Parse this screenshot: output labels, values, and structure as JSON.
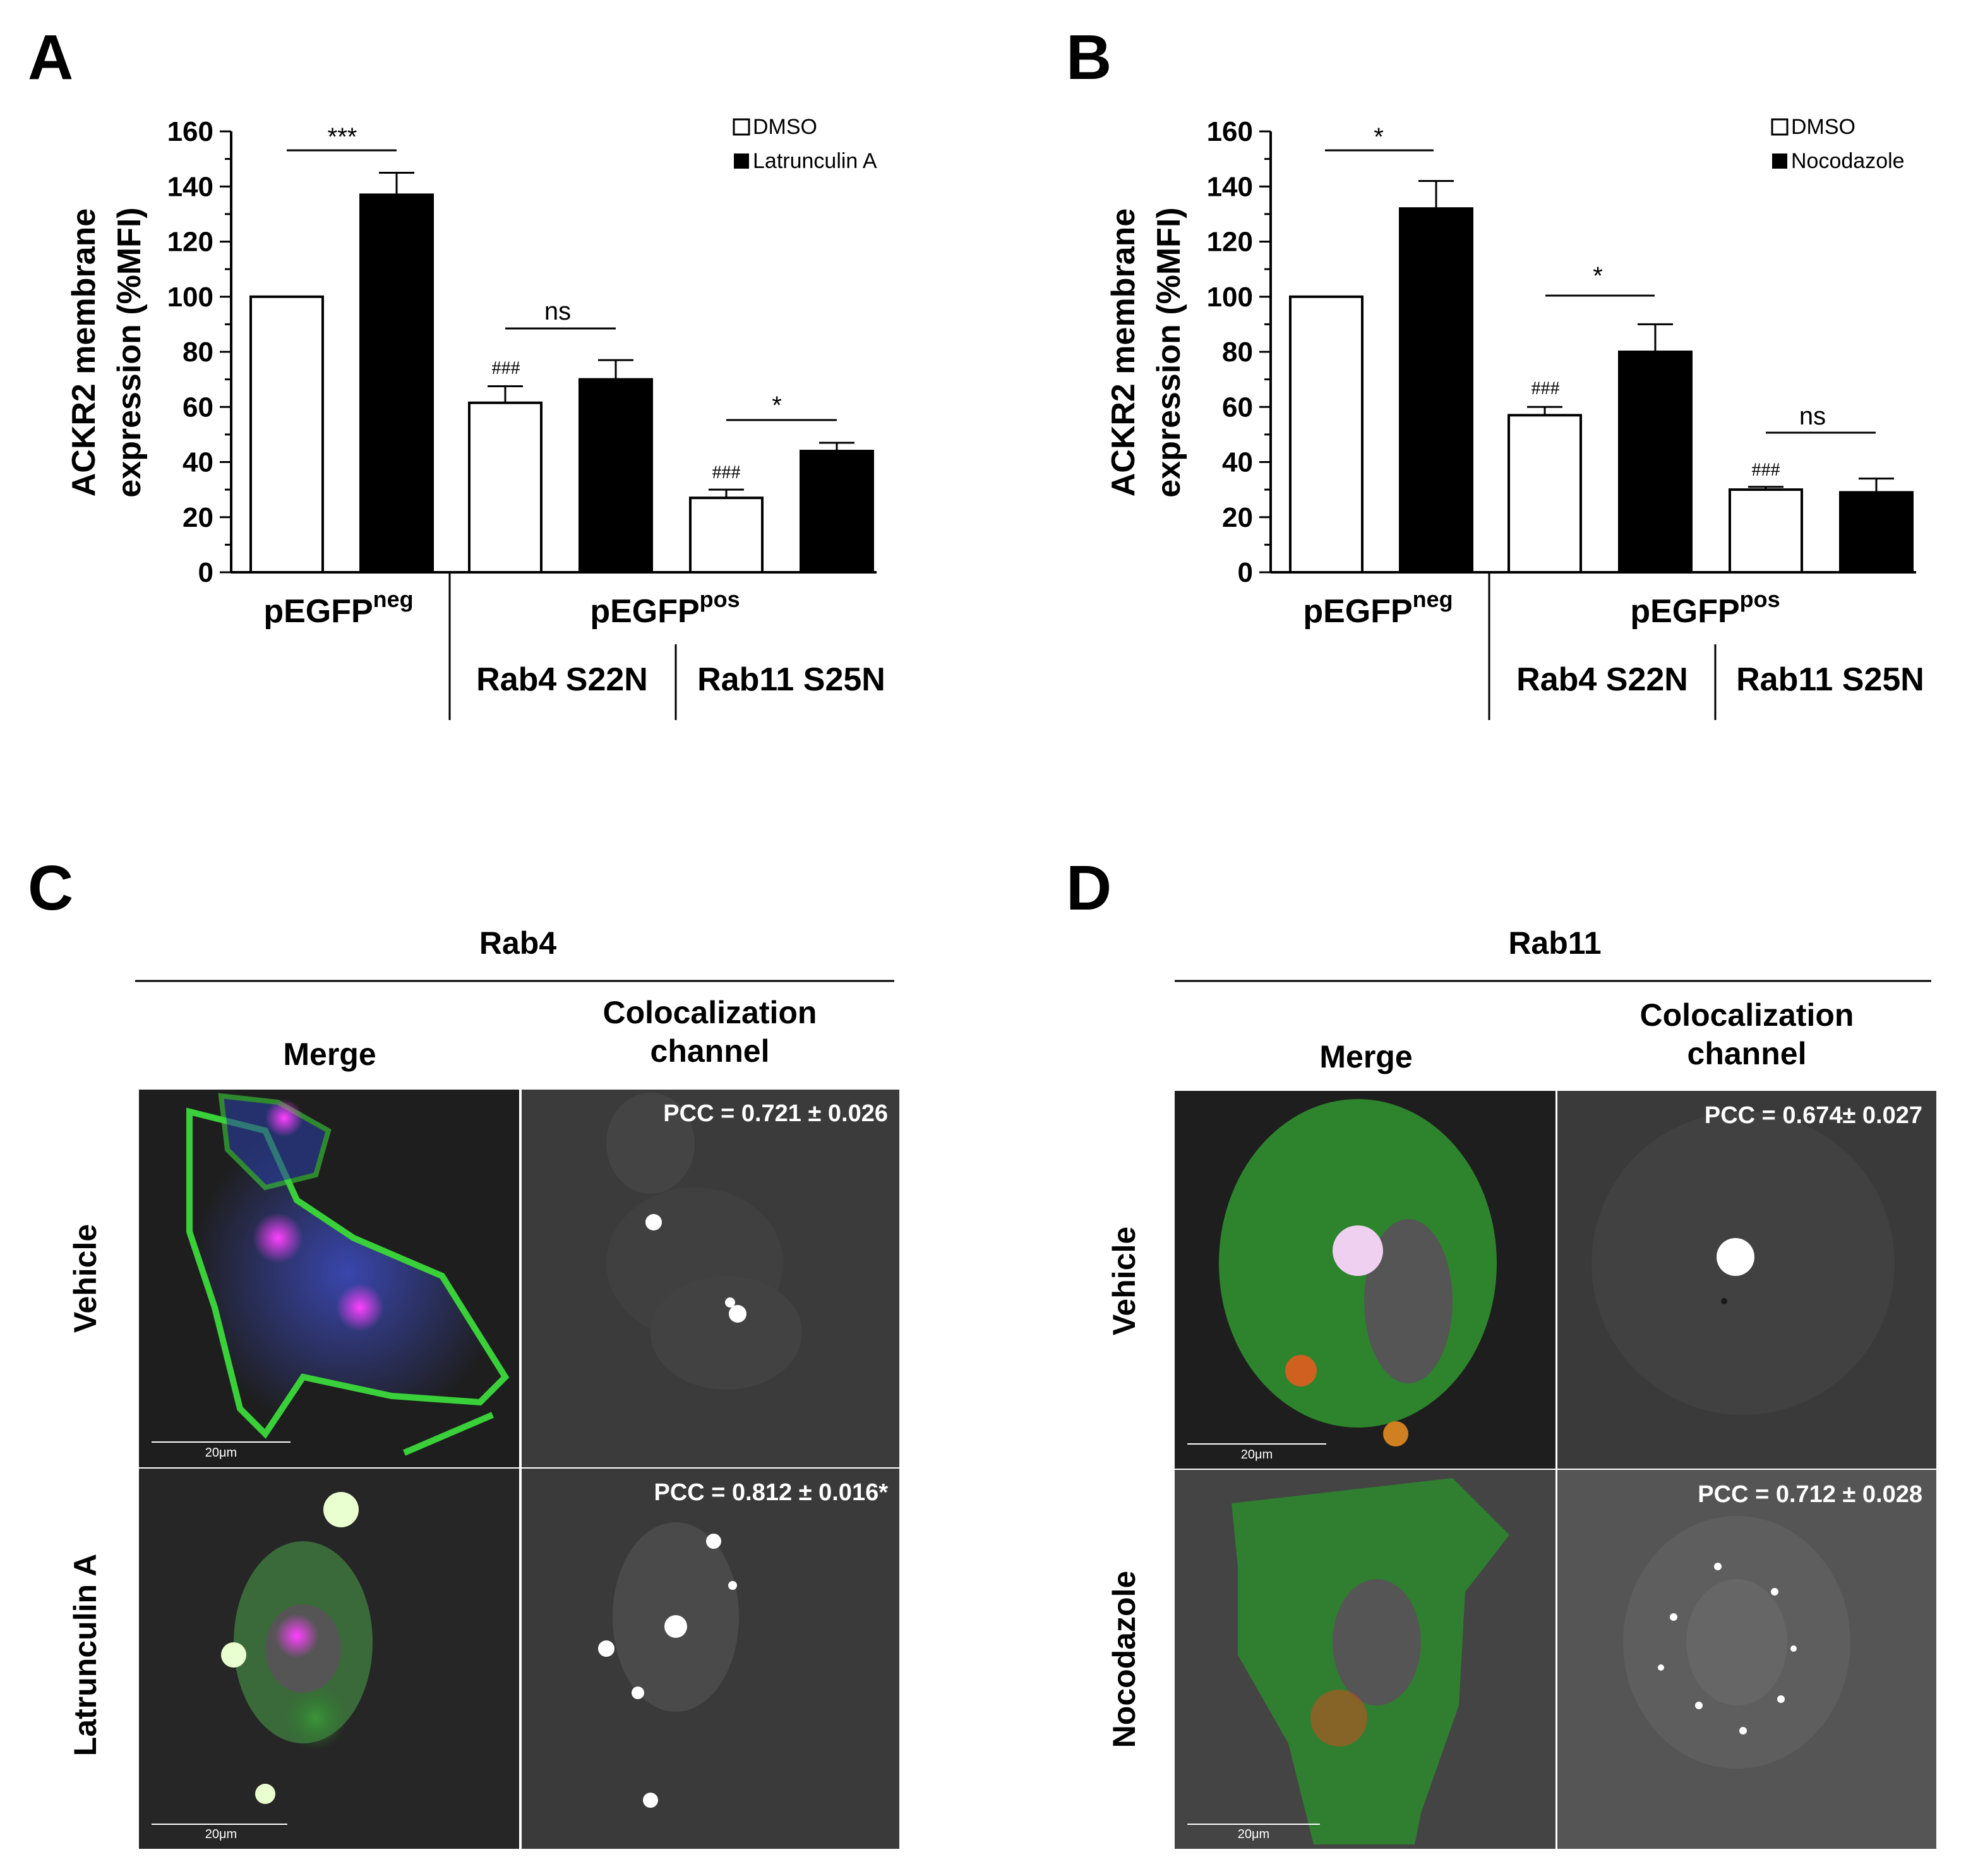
{
  "panels": {
    "A": "A",
    "B": "B",
    "C": "C",
    "D": "D"
  },
  "chart_data": [
    {
      "type": "bar",
      "panel": "A",
      "ylabel_line1": "ACKR2 membrane",
      "ylabel_line2": "expression (%MFI)",
      "ylim": [
        0,
        160
      ],
      "yticks": [
        "0",
        "20",
        "40",
        "60",
        "80",
        "100",
        "120",
        "140",
        "160"
      ],
      "legend": [
        "DMSO",
        "Latrunculin A"
      ],
      "legend_placement": "top-right",
      "series_colors": [
        "#ffffff",
        "#000000"
      ],
      "group_labels": {
        "neg_main": "pEGFP",
        "neg_sup": "neg",
        "pos_main": "pEGFP",
        "pos_sup": "pos",
        "sub1": "Rab4 S22N",
        "sub2": "Rab11 S25N"
      },
      "bars": [
        {
          "series": "DMSO",
          "value": 100,
          "error": 0
        },
        {
          "series": "Latrunculin A",
          "value": 137,
          "error": 8
        },
        {
          "series": "DMSO",
          "value": 61.5,
          "error": 6
        },
        {
          "series": "Latrunculin A",
          "value": 70,
          "error": 7
        },
        {
          "series": "DMSO",
          "value": 27,
          "error": 3
        },
        {
          "series": "Latrunculin A",
          "value": 44,
          "error": 3
        }
      ],
      "hash_labels": [
        "###",
        "###"
      ],
      "significance": [
        "***",
        "ns",
        "*"
      ]
    },
    {
      "type": "bar",
      "panel": "B",
      "ylabel_line1": "ACKR2 membrane",
      "ylabel_line2": "expression (%MFI)",
      "ylim": [
        0,
        160
      ],
      "yticks": [
        "0",
        "20",
        "40",
        "60",
        "80",
        "100",
        "120",
        "140",
        "160"
      ],
      "legend": [
        "DMSO",
        "Nocodazole"
      ],
      "legend_placement": "top-right",
      "series_colors": [
        "#ffffff",
        "#000000"
      ],
      "group_labels": {
        "neg_main": "pEGFP",
        "neg_sup": "neg",
        "pos_main": "pEGFP",
        "pos_sup": "pos",
        "sub1": "Rab4 S22N",
        "sub2": "Rab11 S25N"
      },
      "bars": [
        {
          "series": "DMSO",
          "value": 100,
          "error": 0
        },
        {
          "series": "Nocodazole",
          "value": 132,
          "error": 10
        },
        {
          "series": "DMSO",
          "value": 57,
          "error": 3
        },
        {
          "series": "Nocodazole",
          "value": 80,
          "error": 10
        },
        {
          "series": "DMSO",
          "value": 30,
          "error": 1
        },
        {
          "series": "Nocodazole",
          "value": 29,
          "error": 5
        }
      ],
      "hash_labels": [
        "###",
        "###"
      ],
      "significance": [
        "*",
        "*",
        "ns"
      ]
    }
  ],
  "microscopy": {
    "C": {
      "title": "Rab4",
      "col1": "Merge",
      "col2_line1": "Colocalization",
      "col2_line2": "channel",
      "row1": "Vehicle",
      "row2": "Latrunculin A",
      "pcc1": "PCC =  0.721 ± 0.026",
      "pcc2": "PCC =  0.812 ± 0.016*",
      "scale": "20μm"
    },
    "D": {
      "title": "Rab11",
      "col1": "Merge",
      "col2_line1": "Colocalization",
      "col2_line2": "channel",
      "row1": "Vehicle",
      "row2": "Nocodazole",
      "pcc1": "PCC =  0.674± 0.027",
      "pcc2": "PCC =  0.712 ± 0.028",
      "scale": "20μm"
    }
  }
}
